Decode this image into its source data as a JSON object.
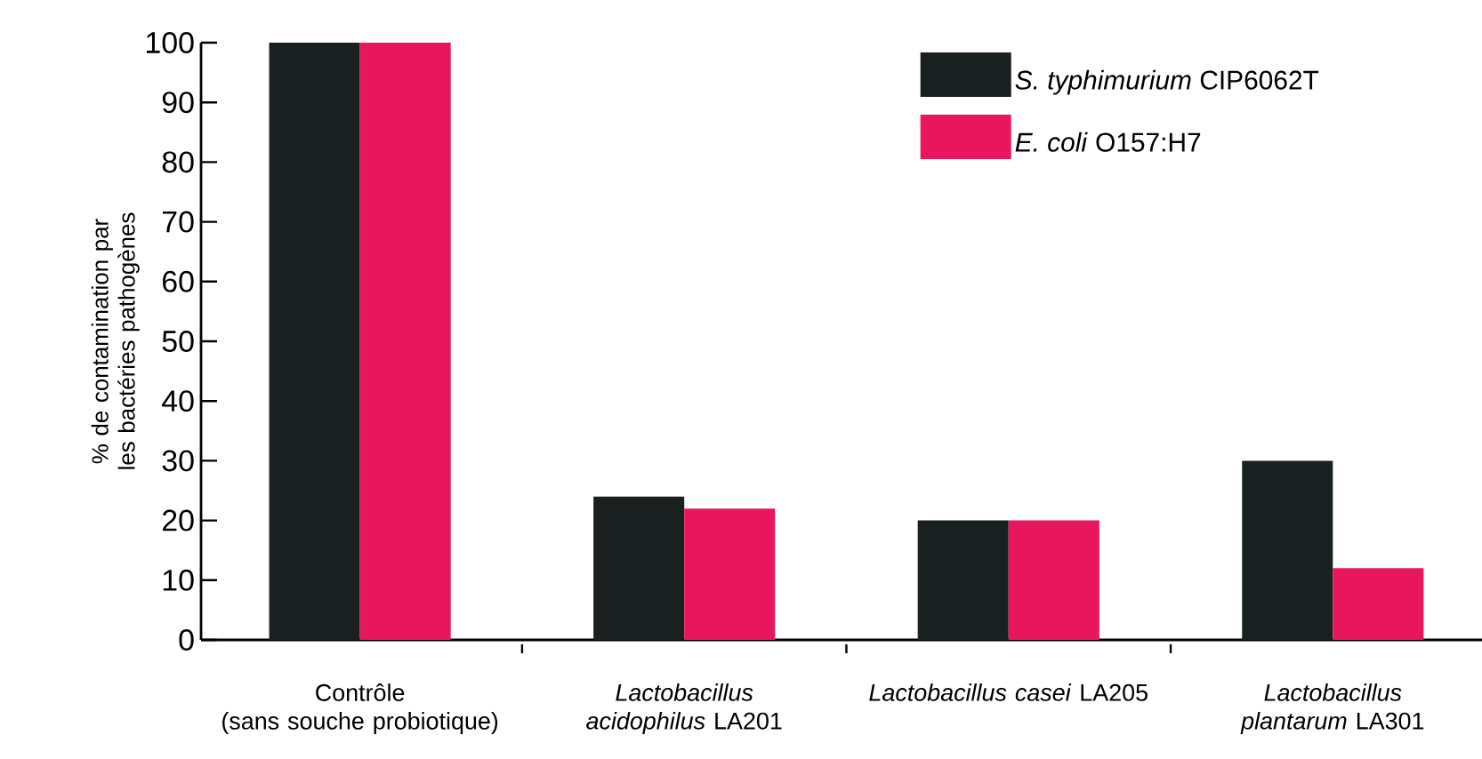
{
  "chart_data": {
    "type": "bar",
    "ylabel": "% de contamination par les bactéries pathogènes",
    "categories": [
      "Contrôle\n(sans souche probiotique)",
      "*Lactobacillus acidophilus* LA201",
      "*Lactobacillus casei* LA205",
      "*Lactobacillus plantarum* LA301"
    ],
    "series": [
      {
        "name": "*S. typhimurium* CIP6062T",
        "color": "#1a1f1f",
        "values": [
          100,
          24,
          20,
          30
        ]
      },
      {
        "name": "*E. coli* O157:H7",
        "color": "#e8175d",
        "values": [
          100,
          22,
          20,
          12
        ]
      }
    ],
    "ylim": [
      0,
      100
    ],
    "yticks": [
      0,
      10,
      20,
      30,
      40,
      50,
      60,
      70,
      80,
      90,
      100
    ],
    "legend": "top right",
    "grid": false
  }
}
